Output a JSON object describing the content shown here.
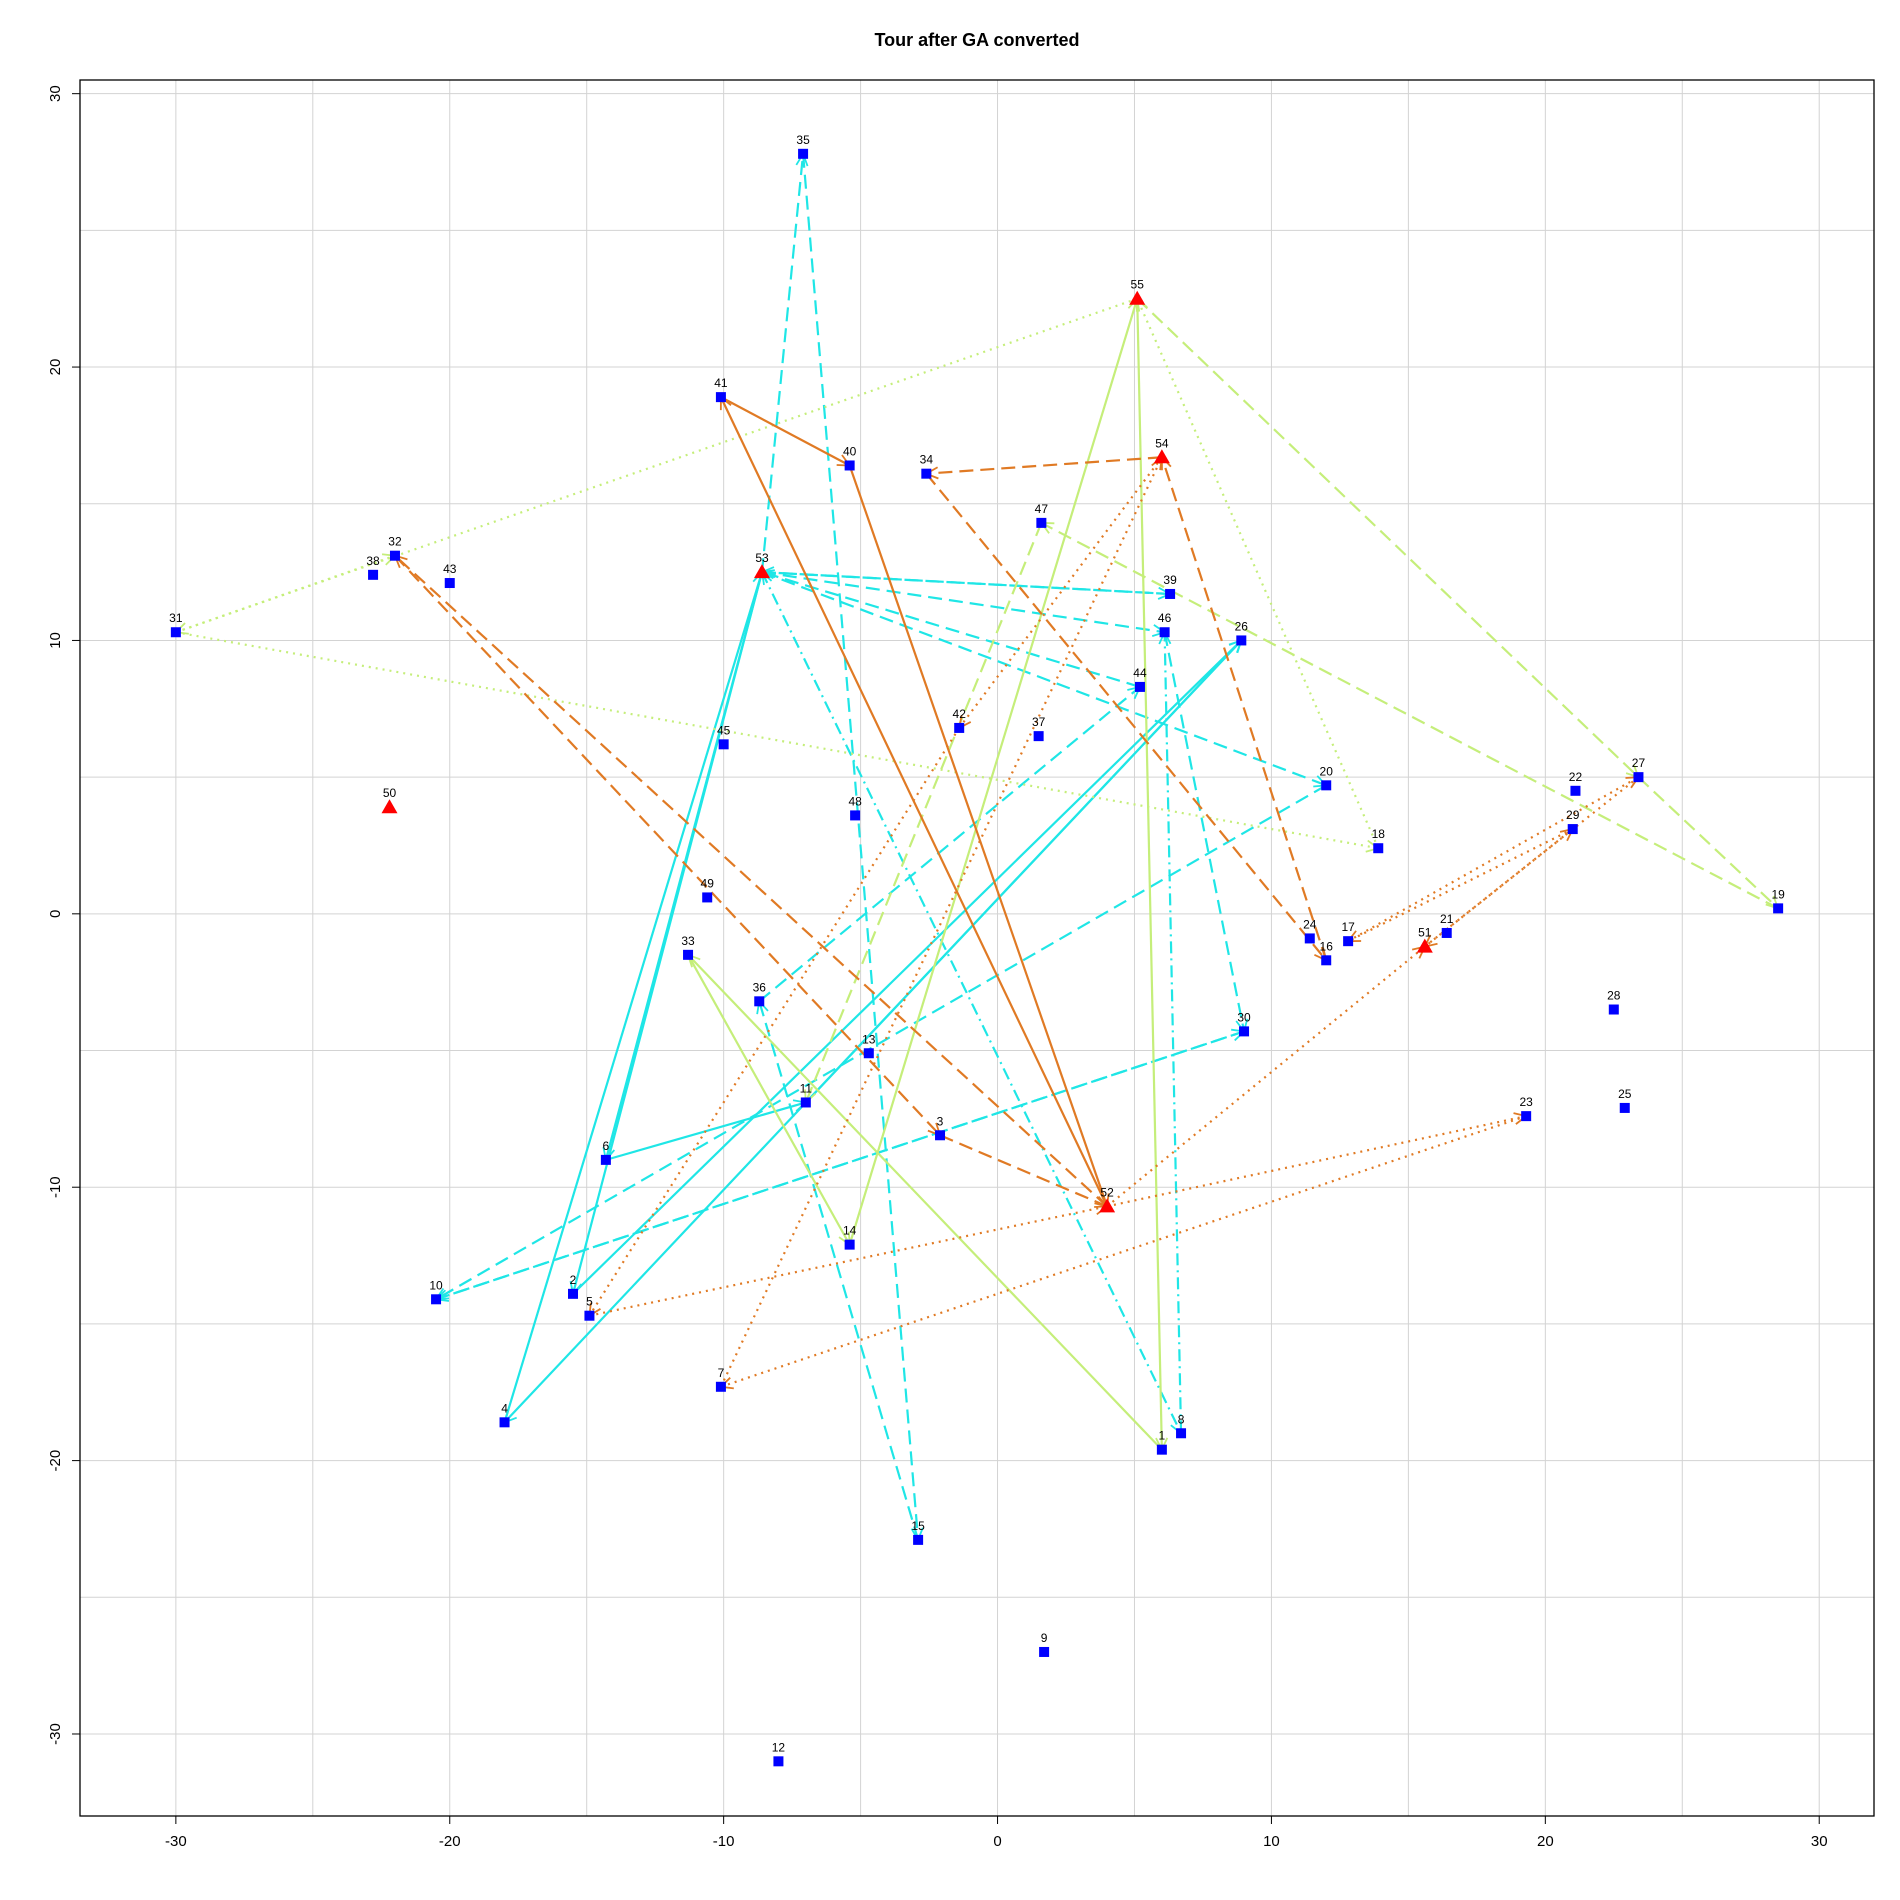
{
  "chart_data": {
    "type": "scatter",
    "title": "Tour after GA converted",
    "xlabel": "",
    "ylabel": "",
    "xlim": [
      -33.5,
      32
    ],
    "ylim": [
      -33,
      30.5
    ],
    "xticks": [
      -30,
      -20,
      -10,
      0,
      10,
      20,
      30
    ],
    "yticks": [
      -30,
      -20,
      -10,
      0,
      10,
      20,
      30
    ],
    "xgrid": [
      -30,
      -25,
      -20,
      -15,
      -10,
      -5,
      0,
      5,
      10,
      15,
      20,
      25,
      30
    ],
    "ygrid": [
      -30,
      -25,
      -20,
      -15,
      -10,
      -5,
      0,
      5,
      10,
      15,
      20,
      25,
      30
    ],
    "grid": true,
    "colors": {
      "customer": "#0000ff",
      "depot": "#ff0000",
      "grid": "#d3d3d3",
      "route_cyan": "#1fe6e6",
      "route_lime": "#c5ee7a",
      "route_orange": "#e07a24"
    },
    "points": [
      {
        "id": "1",
        "x": 6.0,
        "y": -19.6,
        "kind": "customer"
      },
      {
        "id": "2",
        "x": -15.5,
        "y": -13.9,
        "kind": "customer"
      },
      {
        "id": "3",
        "x": -2.1,
        "y": -8.1,
        "kind": "customer"
      },
      {
        "id": "4",
        "x": -18.0,
        "y": -18.6,
        "kind": "customer"
      },
      {
        "id": "5",
        "x": -14.9,
        "y": -14.7,
        "kind": "customer"
      },
      {
        "id": "6",
        "x": -14.3,
        "y": -9.0,
        "kind": "customer"
      },
      {
        "id": "7",
        "x": -10.1,
        "y": -17.3,
        "kind": "customer"
      },
      {
        "id": "8",
        "x": 6.7,
        "y": -19.0,
        "kind": "customer"
      },
      {
        "id": "9",
        "x": 1.7,
        "y": -27.0,
        "kind": "customer"
      },
      {
        "id": "10",
        "x": -20.5,
        "y": -14.1,
        "kind": "customer"
      },
      {
        "id": "11",
        "x": -7.0,
        "y": -6.9,
        "kind": "customer"
      },
      {
        "id": "12",
        "x": -8.0,
        "y": -31.0,
        "kind": "customer"
      },
      {
        "id": "13",
        "x": -4.7,
        "y": -5.1,
        "kind": "customer"
      },
      {
        "id": "14",
        "x": -5.4,
        "y": -12.1,
        "kind": "customer"
      },
      {
        "id": "15",
        "x": -2.9,
        "y": -22.9,
        "kind": "customer"
      },
      {
        "id": "16",
        "x": 12.0,
        "y": -1.7,
        "kind": "customer"
      },
      {
        "id": "17",
        "x": 12.8,
        "y": -1.0,
        "kind": "customer"
      },
      {
        "id": "18",
        "x": 13.9,
        "y": 2.4,
        "kind": "customer"
      },
      {
        "id": "19",
        "x": 28.5,
        "y": 0.2,
        "kind": "customer"
      },
      {
        "id": "20",
        "x": 12.0,
        "y": 4.7,
        "kind": "customer"
      },
      {
        "id": "21",
        "x": 16.4,
        "y": -0.7,
        "kind": "customer"
      },
      {
        "id": "22",
        "x": 21.1,
        "y": 4.5,
        "kind": "customer"
      },
      {
        "id": "23",
        "x": 19.3,
        "y": -7.4,
        "kind": "customer"
      },
      {
        "id": "24",
        "x": 11.4,
        "y": -0.9,
        "kind": "customer"
      },
      {
        "id": "25",
        "x": 22.9,
        "y": -7.1,
        "kind": "customer"
      },
      {
        "id": "26",
        "x": 8.9,
        "y": 10.0,
        "kind": "customer"
      },
      {
        "id": "27",
        "x": 23.4,
        "y": 5.0,
        "kind": "customer"
      },
      {
        "id": "28",
        "x": 22.5,
        "y": -3.5,
        "kind": "customer"
      },
      {
        "id": "29",
        "x": 21.0,
        "y": 3.1,
        "kind": "customer"
      },
      {
        "id": "30",
        "x": 9.0,
        "y": -4.3,
        "kind": "customer"
      },
      {
        "id": "31",
        "x": -30.0,
        "y": 10.3,
        "kind": "customer"
      },
      {
        "id": "32",
        "x": -22.0,
        "y": 13.1,
        "kind": "customer"
      },
      {
        "id": "33",
        "x": -11.3,
        "y": -1.5,
        "kind": "customer"
      },
      {
        "id": "34",
        "x": -2.6,
        "y": 16.1,
        "kind": "customer"
      },
      {
        "id": "35",
        "x": -7.1,
        "y": 27.8,
        "kind": "customer"
      },
      {
        "id": "36",
        "x": -8.7,
        "y": -3.2,
        "kind": "customer"
      },
      {
        "id": "37",
        "x": 1.5,
        "y": 6.5,
        "kind": "customer"
      },
      {
        "id": "38",
        "x": -22.8,
        "y": 12.4,
        "kind": "customer"
      },
      {
        "id": "39",
        "x": 6.3,
        "y": 11.7,
        "kind": "customer"
      },
      {
        "id": "40",
        "x": -5.4,
        "y": 16.4,
        "kind": "customer"
      },
      {
        "id": "41",
        "x": -10.1,
        "y": 18.9,
        "kind": "customer"
      },
      {
        "id": "42",
        "x": -1.4,
        "y": 6.8,
        "kind": "customer"
      },
      {
        "id": "43",
        "x": -20.0,
        "y": 12.1,
        "kind": "customer"
      },
      {
        "id": "44",
        "x": 5.2,
        "y": 8.3,
        "kind": "customer"
      },
      {
        "id": "45",
        "x": -10.0,
        "y": 6.2,
        "kind": "customer"
      },
      {
        "id": "46",
        "x": 6.1,
        "y": 10.3,
        "kind": "customer"
      },
      {
        "id": "47",
        "x": 1.6,
        "y": 14.3,
        "kind": "customer"
      },
      {
        "id": "48",
        "x": -5.2,
        "y": 3.6,
        "kind": "customer"
      },
      {
        "id": "49",
        "x": -10.6,
        "y": 0.6,
        "kind": "customer"
      },
      {
        "id": "50",
        "x": -22.2,
        "y": 3.9,
        "kind": "depot"
      },
      {
        "id": "51",
        "x": 15.6,
        "y": -1.2,
        "kind": "depot"
      },
      {
        "id": "52",
        "x": 4.0,
        "y": -10.7,
        "kind": "depot"
      },
      {
        "id": "53",
        "x": -8.6,
        "y": 12.5,
        "kind": "depot"
      },
      {
        "id": "54",
        "x": 6.0,
        "y": 16.7,
        "kind": "depot"
      },
      {
        "id": "55",
        "x": 5.1,
        "y": 22.5,
        "kind": "depot"
      }
    ],
    "routes": [
      {
        "color": "#1fe6e6",
        "style": "solid",
        "path": [
          "53",
          "2",
          "26",
          "4",
          "53",
          "6",
          "11",
          "26"
        ]
      },
      {
        "color": "#1fe6e6",
        "style": "dashed",
        "path": [
          "53",
          "35",
          "15",
          "36",
          "44",
          "53",
          "20",
          "10",
          "30",
          "10"
        ]
      },
      {
        "color": "#1fe6e6",
        "style": "dashed",
        "path": [
          "53",
          "39",
          "53",
          "46",
          "30"
        ]
      },
      {
        "color": "#1fe6e6",
        "style": "dashdot",
        "path": [
          "53",
          "8",
          "46"
        ]
      },
      {
        "color": "#c5ee7a",
        "style": "solid",
        "path": [
          "55",
          "1",
          "33",
          "14",
          "55"
        ]
      },
      {
        "color": "#c5ee7a",
        "style": "dashed",
        "path": [
          "55",
          "27",
          "19",
          "47",
          "11"
        ]
      },
      {
        "color": "#c5ee7a",
        "style": "dotted",
        "path": [
          "55",
          "31",
          "18",
          "55"
        ]
      },
      {
        "color": "#c5ee7a",
        "style": "dotted",
        "path": [
          "31",
          "32"
        ]
      },
      {
        "color": "#e07a24",
        "style": "solid",
        "path": [
          "52",
          "41",
          "40",
          "52"
        ]
      },
      {
        "color": "#e07a24",
        "style": "dashed",
        "path": [
          "54",
          "34",
          "16",
          "54"
        ]
      },
      {
        "color": "#e07a24",
        "style": "dashed",
        "path": [
          "52",
          "32",
          "3",
          "52"
        ]
      },
      {
        "color": "#e07a24",
        "style": "dotted",
        "path": [
          "51",
          "29",
          "17",
          "27",
          "51"
        ]
      },
      {
        "color": "#e07a24",
        "style": "dotted",
        "path": [
          "52",
          "23",
          "7",
          "54",
          "42",
          "5",
          "52"
        ]
      },
      {
        "color": "#e07a24",
        "style": "dotted",
        "path": [
          "52",
          "51"
        ]
      }
    ]
  }
}
